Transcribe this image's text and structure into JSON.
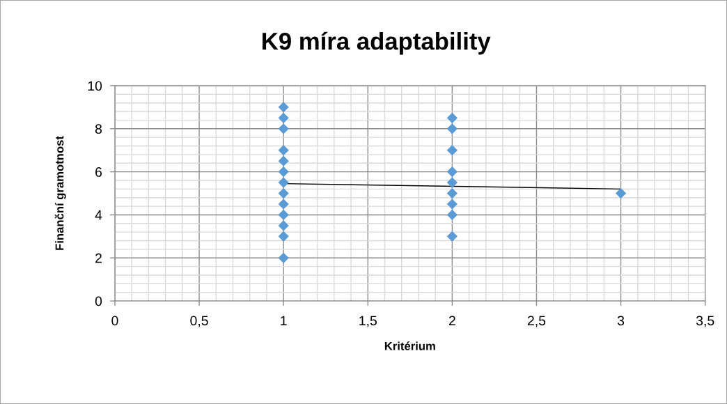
{
  "chart_data": {
    "type": "scatter",
    "title": "K9 míra adaptability",
    "xlabel": "Kritérium",
    "ylabel": "Finanční gramotnost",
    "series": [
      {
        "color": "#5b9bd5",
        "marker": "diamond",
        "x": [
          1,
          1,
          1,
          1,
          1,
          1,
          1,
          1,
          1,
          1,
          1,
          1,
          1,
          2,
          2,
          2,
          2,
          2,
          2,
          2,
          2,
          2,
          3
        ],
        "values": [
          9,
          8.5,
          8,
          7,
          6.5,
          6,
          5.5,
          5,
          4.5,
          4,
          3.5,
          3,
          2,
          8.5,
          8,
          7,
          6,
          5.5,
          5,
          4.5,
          4,
          3,
          5
        ]
      },
      {
        "type": "line",
        "color": "#000000",
        "marker": "none",
        "line_style": "solid",
        "x": [
          1,
          3
        ],
        "values": [
          5.45,
          5.2
        ]
      }
    ],
    "xlim": [
      0,
      3.5
    ],
    "xticks": [
      0,
      {
        "value": 0.1,
        "label": null
      },
      {
        "value": 0.2,
        "label": null
      },
      {
        "value": 0.3,
        "label": null
      },
      {
        "value": 0.4,
        "label": null
      },
      {
        "value": 0.5,
        "label": "0,5"
      },
      {
        "value": 0.6,
        "label": null
      },
      {
        "value": 0.7,
        "label": null
      },
      {
        "value": 0.8,
        "label": null
      },
      {
        "value": 0.9,
        "label": null
      },
      1,
      {
        "value": 1.1,
        "label": null
      },
      {
        "value": 1.2,
        "label": null
      },
      {
        "value": 1.3,
        "label": null
      },
      {
        "value": 1.4,
        "label": null
      },
      {
        "value": 1.5,
        "label": "1,5"
      },
      {
        "value": 1.6,
        "label": null
      },
      {
        "value": 1.7,
        "label": null
      },
      {
        "value": 1.8,
        "label": null
      },
      {
        "value": 1.9,
        "label": null
      },
      2,
      {
        "value": 2.1,
        "label": null
      },
      {
        "value": 2.2,
        "label": null
      },
      {
        "value": 2.3,
        "label": null
      },
      {
        "value": 2.4,
        "label": null
      },
      {
        "value": 2.5,
        "label": "2,5"
      },
      {
        "value": 2.6,
        "label": null
      },
      {
        "value": 2.7,
        "label": null
      },
      {
        "value": 2.8,
        "label": null
      },
      {
        "value": 2.9,
        "label": null
      },
      3,
      {
        "value": 3.1,
        "label": null
      },
      {
        "value": 3.2,
        "label": null
      },
      {
        "value": 3.3,
        "label": null
      },
      {
        "value": 3.4,
        "label": null
      },
      {
        "value": 3.5,
        "label": "3,5"
      }
    ],
    "ylim": [
      0,
      10
    ],
    "yticks": [
      0,
      {
        "value": 0.4,
        "label": null
      },
      {
        "value": 0.8,
        "label": null
      },
      {
        "value": 1.2,
        "label": null
      },
      {
        "value": 1.6,
        "label": null
      },
      2,
      {
        "value": 2.4,
        "label": null
      },
      {
        "value": 2.8,
        "label": null
      },
      {
        "value": 3.2,
        "label": null
      },
      {
        "value": 3.6,
        "label": null
      },
      4,
      {
        "value": 4.4,
        "label": null
      },
      {
        "value": 4.8,
        "label": null
      },
      {
        "value": 5.2,
        "label": null
      },
      {
        "value": 5.6,
        "label": null
      },
      6,
      {
        "value": 6.4,
        "label": null
      },
      {
        "value": 6.8,
        "label": null
      },
      {
        "value": 7.2,
        "label": null
      },
      {
        "value": 7.6,
        "label": null
      },
      8,
      {
        "value": 8.4,
        "label": null
      },
      {
        "value": 8.8,
        "label": null
      },
      {
        "value": 9.2,
        "label": null
      },
      {
        "value": 9.6,
        "label": null
      },
      10
    ],
    "grid": true
  }
}
